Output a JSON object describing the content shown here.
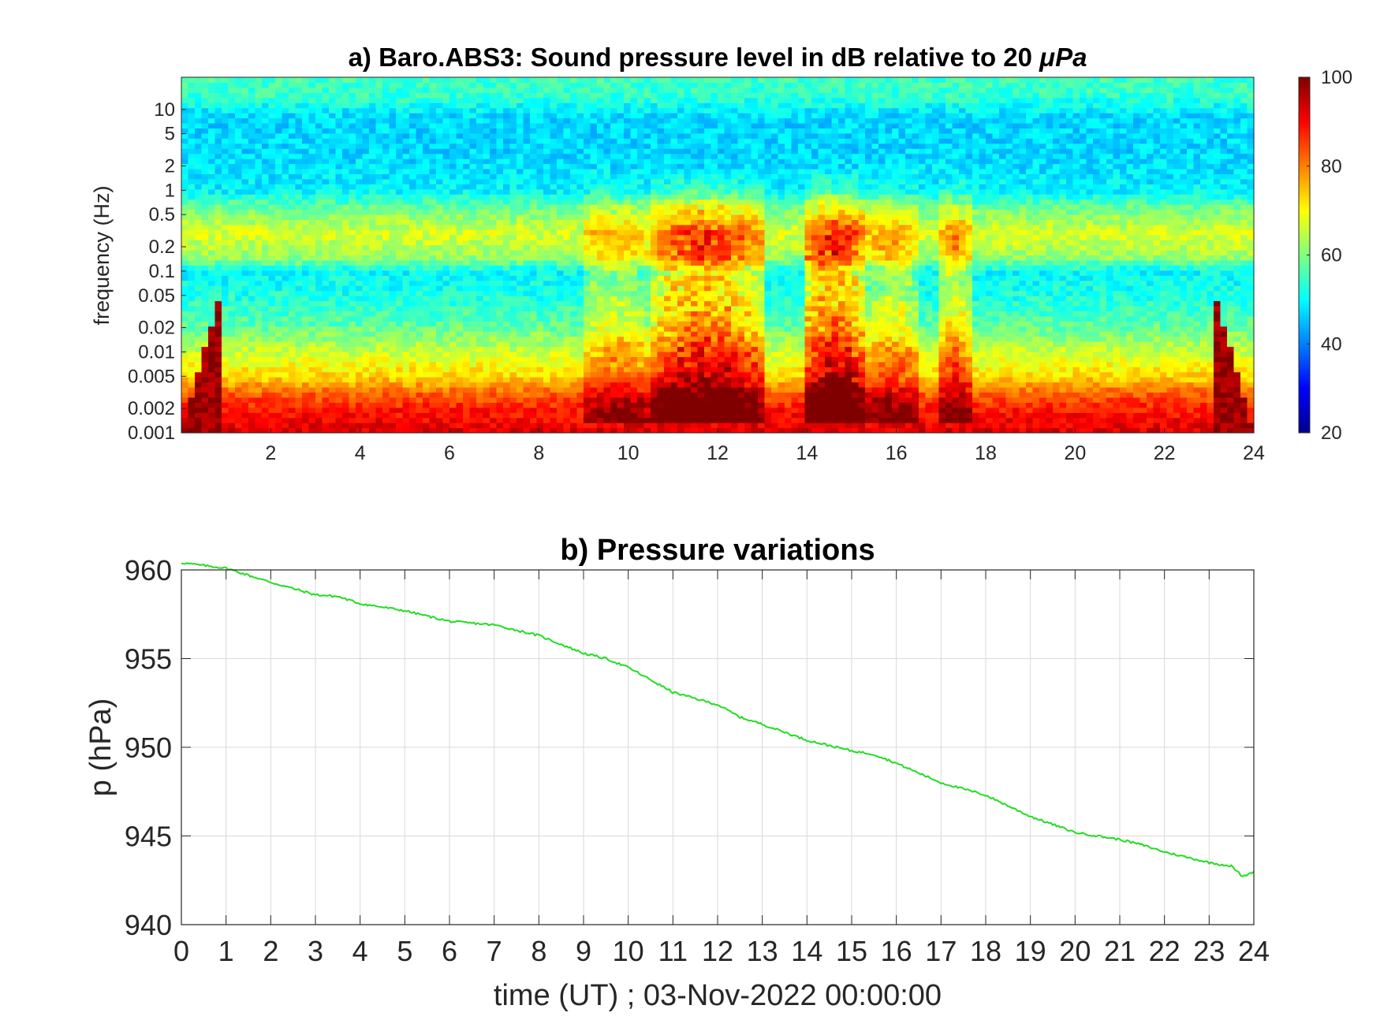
{
  "chart_data": [
    {
      "type": "heatmap",
      "title": "a) Baro.ABS3: Sound pressure level in dB relative to 20 ",
      "title_unit": "μPa",
      "xlabel": "",
      "ylabel": "frequency (Hz)",
      "xlim": [
        0,
        24
      ],
      "x_ticks": [
        2,
        4,
        6,
        8,
        10,
        12,
        14,
        16,
        18,
        20,
        22,
        24
      ],
      "y_scale": "log",
      "ylim": [
        0.001,
        25
      ],
      "y_ticks": [
        0.001,
        0.002,
        0.005,
        0.01,
        0.02,
        0.05,
        0.1,
        0.2,
        0.5,
        1,
        2,
        5,
        10
      ],
      "y_tick_labels": [
        "0.001",
        "0.002",
        "0.005",
        "0.01",
        "0.02",
        "0.05",
        "0.1",
        "0.2",
        "0.5",
        "1",
        "2",
        "5",
        "10"
      ],
      "colormap": "jet",
      "colorbar": {
        "range": [
          20,
          100
        ],
        "ticks": [
          20,
          40,
          60,
          80,
          100
        ]
      },
      "grid": false,
      "spectral_profile_db": [
        {
          "f": 0.001,
          "db": 93
        },
        {
          "f": 0.002,
          "db": 88
        },
        {
          "f": 0.003,
          "db": 83
        },
        {
          "f": 0.005,
          "db": 73
        },
        {
          "f": 0.01,
          "db": 66
        },
        {
          "f": 0.02,
          "db": 58
        },
        {
          "f": 0.05,
          "db": 52
        },
        {
          "f": 0.1,
          "db": 50
        },
        {
          "f": 0.15,
          "db": 62
        },
        {
          "f": 0.3,
          "db": 67
        },
        {
          "f": 0.6,
          "db": 59
        },
        {
          "f": 1,
          "db": 49
        },
        {
          "f": 3,
          "db": 47
        },
        {
          "f": 8,
          "db": 47
        },
        {
          "f": 15,
          "db": 54
        },
        {
          "f": 25,
          "db": 55
        }
      ],
      "activity_bursts": [
        {
          "t_start": 9.0,
          "t_end": 10.5,
          "extra_db": 12
        },
        {
          "t_start": 10.5,
          "t_end": 13.0,
          "extra_db": 26
        },
        {
          "t_start": 13.9,
          "t_end": 15.3,
          "extra_db": 28
        },
        {
          "t_start": 15.3,
          "t_end": 16.5,
          "extra_db": 14
        },
        {
          "t_start": 16.9,
          "t_end": 17.7,
          "extra_db": 16
        }
      ]
    },
    {
      "type": "line",
      "title": "b) Pressure variations",
      "xlabel": "time (UT) ; 03-Nov-2022 00:00:00",
      "ylabel": "p (hPa)",
      "xlim": [
        0,
        24
      ],
      "ylim": [
        940,
        960
      ],
      "x_ticks": [
        0,
        1,
        2,
        3,
        4,
        5,
        6,
        7,
        8,
        9,
        10,
        11,
        12,
        13,
        14,
        15,
        16,
        17,
        18,
        19,
        20,
        21,
        22,
        23,
        24
      ],
      "y_ticks": [
        940,
        945,
        950,
        955,
        960
      ],
      "grid": true,
      "series": [
        {
          "color": "#22dd22",
          "x": [
            0,
            1,
            2,
            3,
            3.5,
            4,
            5,
            6,
            7,
            8,
            9,
            9.5,
            10,
            11,
            12,
            12.5,
            13,
            14,
            15,
            15.5,
            16,
            17,
            18,
            19,
            20,
            21,
            21.5,
            22,
            23,
            23.5,
            23.75,
            24
          ],
          "y": [
            960.4,
            960.1,
            959.3,
            958.6,
            958.5,
            958.1,
            957.7,
            957.1,
            956.9,
            956.3,
            955.3,
            955.0,
            954.5,
            953.1,
            952.4,
            951.7,
            951.3,
            950.4,
            949.8,
            949.6,
            949.1,
            948.0,
            947.3,
            946.1,
            945.2,
            944.8,
            944.5,
            944.1,
            943.5,
            943.3,
            942.7,
            943.0
          ]
        }
      ]
    }
  ]
}
